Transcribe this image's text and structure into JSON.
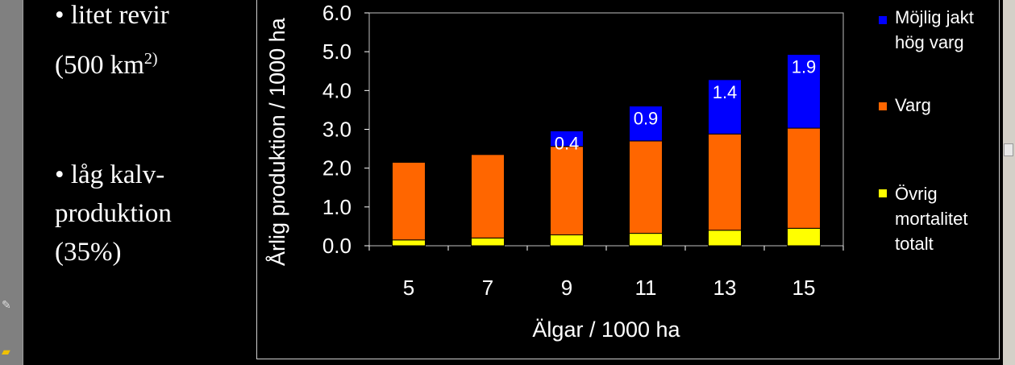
{
  "slide": {
    "bullet1": {
      "marker": "•",
      "line1": "litet revir",
      "line2_main": "(500 km",
      "line2_sup": "2)"
    },
    "bullet2": {
      "marker": "•",
      "line1": "låg kalv-",
      "line2": "produktion",
      "line3": "(35%)"
    }
  },
  "chart_data": {
    "type": "bar",
    "stacked": true,
    "categories": [
      "5",
      "7",
      "9",
      "11",
      "13",
      "15"
    ],
    "series": [
      {
        "name": "Övrig mortalitet totalt",
        "color": "#ffff00",
        "values": [
          0.15,
          0.2,
          0.28,
          0.32,
          0.4,
          0.45
        ]
      },
      {
        "name": "Varg",
        "color": "#ff6600",
        "values": [
          2.0,
          2.15,
          2.28,
          2.38,
          2.48,
          2.58
        ]
      },
      {
        "name": "Möjlig jakt hög varg",
        "color": "#0000ff",
        "values": [
          0,
          0,
          0.4,
          0.9,
          1.4,
          1.9
        ],
        "data_labels": [
          "",
          "",
          "0.4",
          "0.9",
          "1.4",
          "1.9"
        ]
      }
    ],
    "xlabel": "Älgar / 1000 ha",
    "ylabel": "Årlig produktion / 1000 ha",
    "ylim": [
      0,
      6
    ],
    "yticks": [
      "0.0",
      "1.0",
      "2.0",
      "3.0",
      "4.0",
      "5.0",
      "6.0"
    ],
    "grid": false,
    "legend": {
      "placement": "right",
      "entries": [
        {
          "series": 2,
          "lines": [
            "Möjlig jakt",
            "hög varg"
          ]
        },
        {
          "series": 1,
          "lines": [
            "Varg"
          ]
        },
        {
          "series": 0,
          "lines": [
            "Övrig",
            "mortalitet",
            "totalt"
          ]
        }
      ]
    }
  }
}
